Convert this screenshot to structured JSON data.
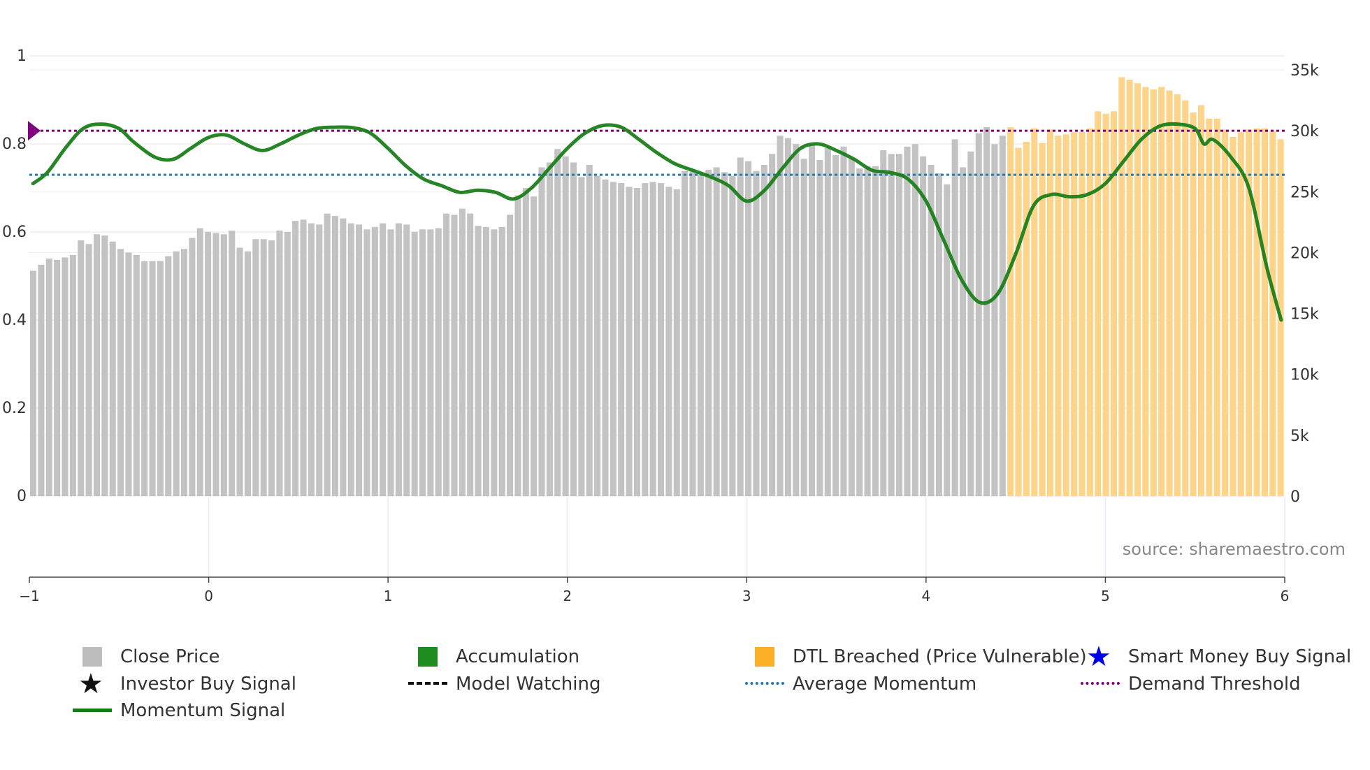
{
  "chart_data": {
    "type": "bar+line",
    "source_label": "source: sharemaestro.com",
    "x_axis": {
      "range": [
        -1,
        6
      ],
      "ticks": [
        "−1",
        "0",
        "1",
        "2",
        "3",
        "4",
        "5",
        "6"
      ]
    },
    "y_left": {
      "range": [
        0,
        1
      ],
      "ticks": [
        "0",
        "0.2",
        "0.4",
        "0.6",
        "0.8",
        "1"
      ]
    },
    "y_right": {
      "range": [
        0,
        36000
      ],
      "ticks": [
        "0",
        "5k",
        "10k",
        "15k",
        "20k",
        "25k",
        "30k",
        "35k"
      ]
    },
    "close_price": [
      18500,
      19000,
      19500,
      19400,
      19600,
      19800,
      21000,
      20700,
      21500,
      21400,
      20900,
      20300,
      20000,
      19800,
      19300,
      19300,
      19300,
      19700,
      20100,
      20300,
      21200,
      22000,
      21700,
      21600,
      21500,
      21800,
      20400,
      20100,
      21100,
      21100,
      21000,
      21800,
      21700,
      22600,
      22700,
      22400,
      22300,
      23200,
      23000,
      22800,
      22400,
      22300,
      21900,
      22100,
      22400,
      21900,
      22400,
      22300,
      21700,
      21900,
      21900,
      22000,
      23200,
      23100,
      23600,
      23200,
      22200,
      22100,
      21900,
      22100,
      23100,
      24700,
      25300,
      24600,
      27000,
      27400,
      28500,
      27900,
      27400,
      26200,
      27200,
      26300,
      26000,
      25800,
      25700,
      25400,
      25300,
      25700,
      25800,
      25700,
      25400,
      25200,
      26700,
      26700,
      26400,
      26800,
      27000,
      26600,
      26300,
      27800,
      27500,
      26700,
      27200,
      28100,
      29600,
      29400,
      28900,
      27700,
      28900,
      27600,
      28600,
      28000,
      28700,
      27800,
      26900,
      27100,
      27100,
      28400,
      28100,
      28100,
      28700,
      28900,
      27900,
      27200,
      26500,
      25600,
      29300,
      27000,
      28300,
      29800,
      30300,
      28900,
      29600,
      30300,
      28600,
      29100,
      30200,
      29000,
      30100,
      29600,
      29700,
      29900,
      29900,
      30200,
      31600,
      31400,
      31600,
      34400,
      34200,
      33900,
      33600,
      33400,
      33600,
      33300,
      33000,
      32500,
      31500,
      32100,
      31000,
      31000,
      30100,
      29500,
      29900,
      30100,
      30200,
      30200,
      30000,
      29300
    ],
    "dtl_breached_from_index": 123,
    "momentum": [
      [
        -0.98,
        0.71
      ],
      [
        -0.9,
        0.735
      ],
      [
        -0.8,
        0.79
      ],
      [
        -0.7,
        0.835
      ],
      [
        -0.6,
        0.845
      ],
      [
        -0.5,
        0.835
      ],
      [
        -0.42,
        0.805
      ],
      [
        -0.3,
        0.77
      ],
      [
        -0.2,
        0.765
      ],
      [
        -0.1,
        0.79
      ],
      [
        0.0,
        0.815
      ],
      [
        0.1,
        0.82
      ],
      [
        0.2,
        0.8
      ],
      [
        0.3,
        0.785
      ],
      [
        0.4,
        0.8
      ],
      [
        0.5,
        0.82
      ],
      [
        0.6,
        0.835
      ],
      [
        0.7,
        0.838
      ],
      [
        0.8,
        0.837
      ],
      [
        0.9,
        0.825
      ],
      [
        1.0,
        0.79
      ],
      [
        1.1,
        0.75
      ],
      [
        1.2,
        0.72
      ],
      [
        1.3,
        0.705
      ],
      [
        1.4,
        0.69
      ],
      [
        1.5,
        0.695
      ],
      [
        1.6,
        0.69
      ],
      [
        1.7,
        0.675
      ],
      [
        1.8,
        0.7
      ],
      [
        1.9,
        0.745
      ],
      [
        2.0,
        0.79
      ],
      [
        2.1,
        0.825
      ],
      [
        2.2,
        0.842
      ],
      [
        2.3,
        0.838
      ],
      [
        2.4,
        0.81
      ],
      [
        2.5,
        0.78
      ],
      [
        2.6,
        0.755
      ],
      [
        2.7,
        0.74
      ],
      [
        2.8,
        0.725
      ],
      [
        2.9,
        0.705
      ],
      [
        3.0,
        0.67
      ],
      [
        3.1,
        0.695
      ],
      [
        3.2,
        0.745
      ],
      [
        3.3,
        0.79
      ],
      [
        3.4,
        0.8
      ],
      [
        3.5,
        0.785
      ],
      [
        3.6,
        0.765
      ],
      [
        3.7,
        0.74
      ],
      [
        3.8,
        0.735
      ],
      [
        3.9,
        0.72
      ],
      [
        4.0,
        0.67
      ],
      [
        4.1,
        0.58
      ],
      [
        4.2,
        0.49
      ],
      [
        4.3,
        0.44
      ],
      [
        4.4,
        0.46
      ],
      [
        4.5,
        0.55
      ],
      [
        4.6,
        0.66
      ],
      [
        4.7,
        0.685
      ],
      [
        4.8,
        0.68
      ],
      [
        4.9,
        0.685
      ],
      [
        5.0,
        0.71
      ],
      [
        5.1,
        0.76
      ],
      [
        5.2,
        0.81
      ],
      [
        5.3,
        0.84
      ],
      [
        5.4,
        0.845
      ],
      [
        5.5,
        0.835
      ],
      [
        5.55,
        0.8
      ],
      [
        5.6,
        0.81
      ],
      [
        5.7,
        0.77
      ],
      [
        5.8,
        0.7
      ],
      [
        5.9,
        0.52
      ],
      [
        5.98,
        0.4
      ]
    ],
    "average_momentum": 0.73,
    "demand_threshold": 0.83,
    "legend": [
      {
        "label": "Close Price",
        "symbol": "square",
        "color": "#bdbdbd"
      },
      {
        "label": "Accumulation",
        "symbol": "square",
        "color": "#1e8c1e"
      },
      {
        "label": "DTL Breached (Price Vulnerable)",
        "symbol": "square",
        "color": "#fbb027"
      },
      {
        "label": "Smart Money Buy Signal",
        "symbol": "star",
        "color": "#0000ee"
      },
      {
        "label": "Investor Buy Signal",
        "symbol": "star",
        "color": "#111111"
      },
      {
        "label": "Model Watching",
        "symbol": "dash",
        "color": "#111111"
      },
      {
        "label": "Average Momentum",
        "symbol": "dot",
        "color": "#1f77b4"
      },
      {
        "label": "Demand Threshold",
        "symbol": "dot",
        "color": "#800080"
      },
      {
        "label": "Momentum Signal",
        "symbol": "line",
        "color": "#167b16"
      }
    ],
    "colors": {
      "close_bar": "#c3c3c3",
      "dtl_bar": "#fdd48a",
      "momentum": "#1a7f1a",
      "average_momentum": "#2a7ab0",
      "demand_threshold": "#800080",
      "grid": "#e6e6e6"
    }
  }
}
